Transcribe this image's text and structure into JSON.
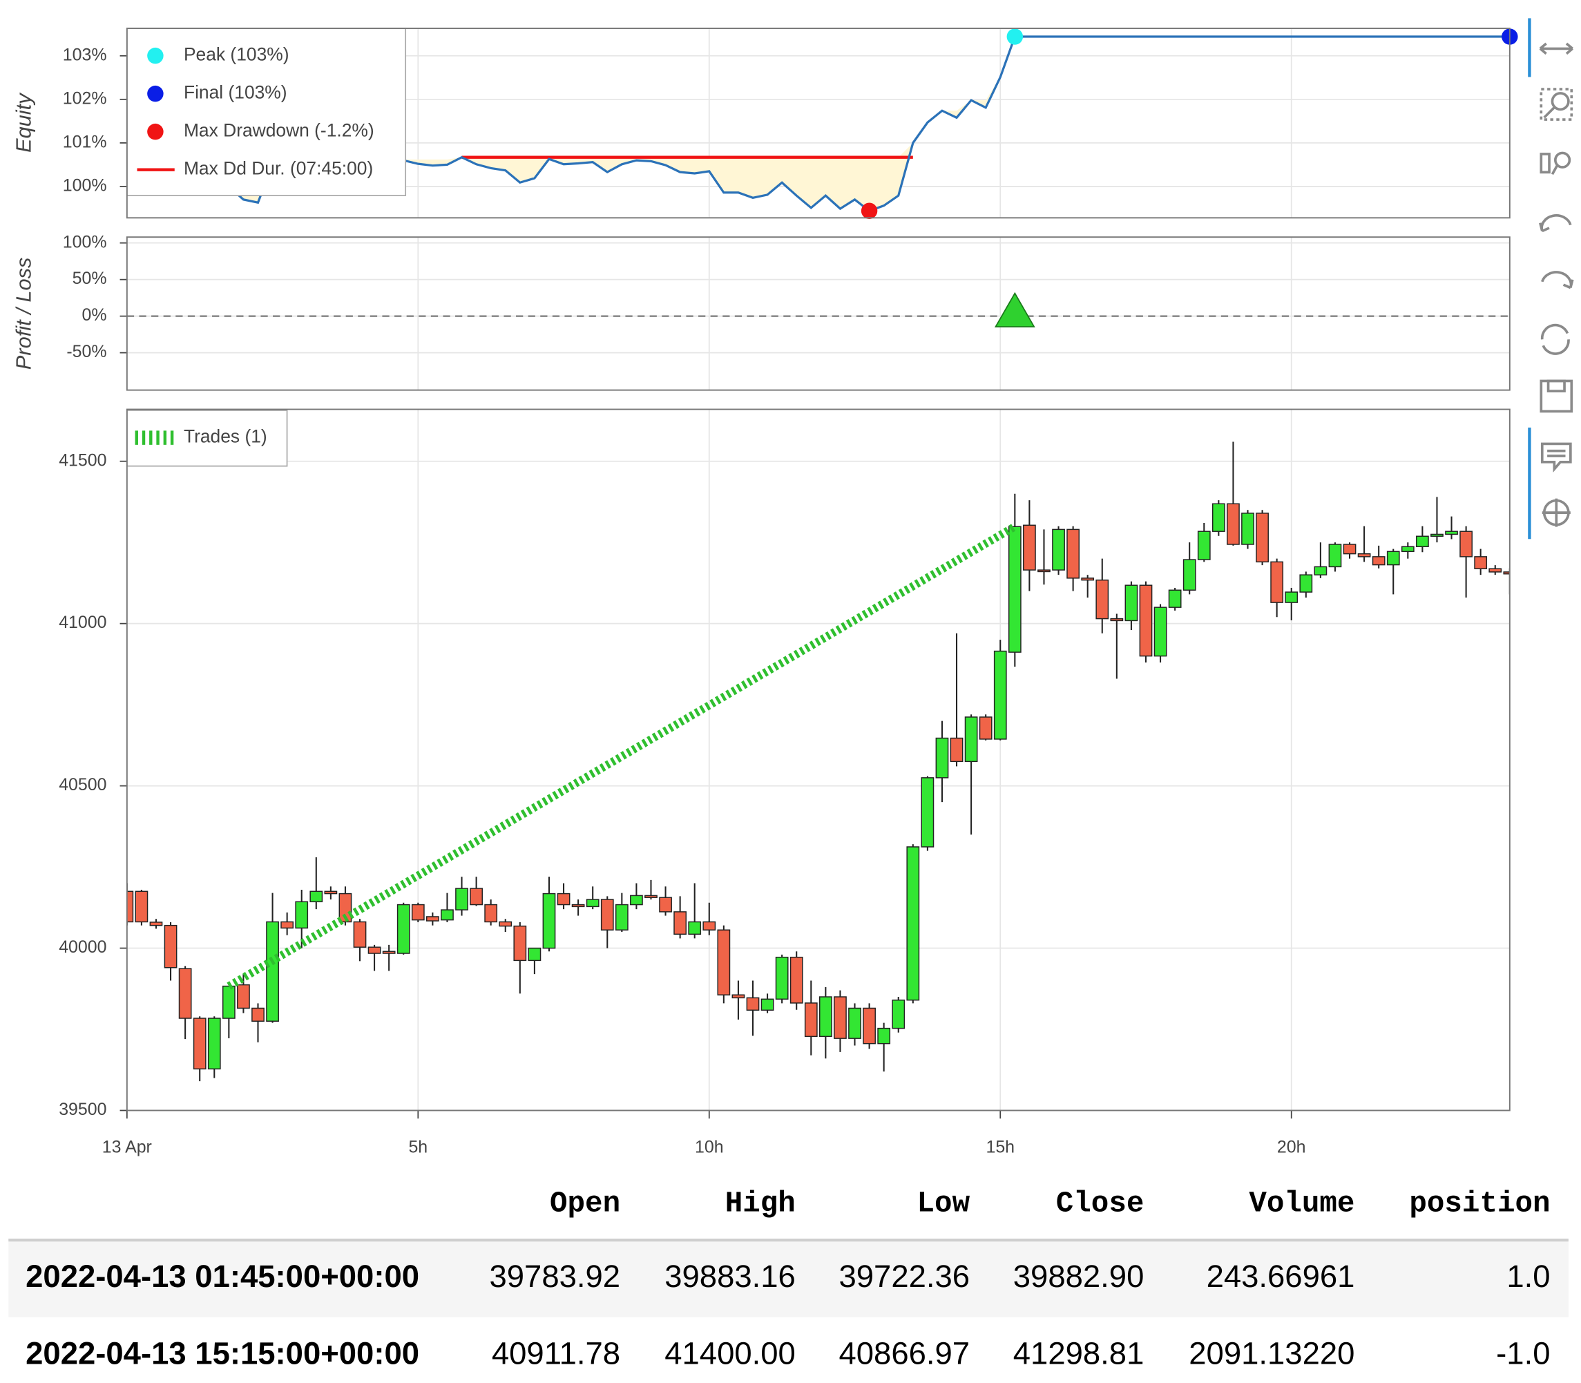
{
  "chart_data": [
    {
      "type": "line",
      "ylabel": "Equity",
      "color": "#2b72b8",
      "fill_color": "#fff6d5",
      "xlim": [
        0,
        23.75
      ],
      "ylim": [
        99.28,
        103.63
      ],
      "yticks": [
        {
          "value": 100,
          "label": "100%"
        },
        {
          "value": 101,
          "label": "101%"
        },
        {
          "value": 102,
          "label": "102%"
        },
        {
          "value": 103,
          "label": "103%"
        }
      ],
      "x": [
        0,
        0.25,
        0.5,
        0.75,
        1,
        1.25,
        1.5,
        1.75,
        2,
        2.25,
        2.5,
        2.75,
        3,
        3.25,
        3.5,
        3.75,
        4,
        4.25,
        4.5,
        4.75,
        5,
        5.25,
        5.5,
        5.75,
        6,
        6.25,
        6.5,
        6.75,
        7,
        7.25,
        7.5,
        7.75,
        8,
        8.25,
        8.5,
        8.75,
        9,
        9.25,
        9.5,
        9.75,
        10,
        10.25,
        10.5,
        10.75,
        11,
        11.25,
        11.5,
        11.75,
        12,
        12.25,
        12.5,
        12.75,
        13,
        13.25,
        13.5,
        13.75,
        14,
        14.25,
        14.5,
        14.75,
        15,
        15.25,
        23.75
      ],
      "values": [
        100,
        100,
        100,
        100,
        100,
        100,
        100,
        100,
        99.7,
        99.63,
        100.5,
        100.45,
        100.6,
        100.62,
        100.58,
        100.5,
        100.3,
        100.25,
        100.25,
        100.6,
        100.52,
        100.48,
        100.5,
        100.67,
        100.51,
        100.42,
        100.37,
        100.09,
        100.19,
        100.63,
        100.51,
        100.53,
        100.56,
        100.33,
        100.51,
        100.6,
        100.58,
        100.49,
        100.33,
        100.3,
        100.35,
        99.86,
        99.86,
        99.74,
        99.81,
        100.09,
        99.79,
        99.51,
        99.79,
        99.49,
        99.7,
        99.44,
        99.56,
        99.79,
        101.0,
        101.47,
        101.74,
        101.58,
        101.98,
        101.81,
        102.51,
        103.44,
        103.44
      ],
      "peak": {
        "label": "Peak (103%)",
        "x": 15.25,
        "value": 103.44,
        "color": "#22f0f0"
      },
      "final": {
        "label": "Final (103%)",
        "x": 23.75,
        "value": 103.44,
        "color": "#0a1ee6"
      },
      "max_drawdown": {
        "label": "Max Drawdown (-1.2%)",
        "x": 12.75,
        "value": 99.44,
        "color": "#f01414"
      },
      "max_dd_duration": {
        "label": "Max Dd Dur. (07:45:00)",
        "x": [
          5.75,
          13.5
        ],
        "value": 100.67,
        "color": "#f01414"
      }
    },
    {
      "type": "scatter",
      "ylabel": "Profit / Loss",
      "color": "#2fd12f",
      "xlim": [
        0,
        23.75
      ],
      "ylim": [
        -101,
        108
      ],
      "yticks": [
        {
          "value": 100,
          "label": "100%"
        },
        {
          "value": 50,
          "label": "50%"
        },
        {
          "value": 0,
          "label": "0%"
        },
        {
          "value": -50,
          "label": "-50%"
        }
      ],
      "x": [
        15.25
      ],
      "values": [
        3.55
      ]
    },
    {
      "type": "candlestick",
      "up_color": "#33e633",
      "down_color": "#f06448",
      "xlim": [
        0,
        23.75
      ],
      "ylim": [
        39500,
        41660
      ],
      "yticks": [
        39500,
        40000,
        40500,
        41000,
        41500
      ],
      "xticks": [
        {
          "value": 0,
          "label": "13 Apr"
        },
        {
          "value": 5,
          "label": "5h"
        },
        {
          "value": 10,
          "label": "10h"
        },
        {
          "value": 15,
          "label": "15h"
        },
        {
          "value": 20,
          "label": "20h"
        }
      ],
      "x": [
        0,
        0.25,
        0.5,
        0.75,
        1,
        1.25,
        1.5,
        1.75,
        2,
        2.25,
        2.5,
        2.75,
        3,
        3.25,
        3.5,
        3.75,
        4,
        4.25,
        4.5,
        4.75,
        5,
        5.25,
        5.5,
        5.75,
        6,
        6.25,
        6.5,
        6.75,
        7,
        7.25,
        7.5,
        7.75,
        8,
        8.25,
        8.5,
        8.75,
        9,
        9.25,
        9.5,
        9.75,
        10,
        10.25,
        10.5,
        10.75,
        11,
        11.25,
        11.5,
        11.75,
        12,
        12.25,
        12.5,
        12.75,
        13,
        13.25,
        13.5,
        13.75,
        14,
        14.25,
        14.5,
        14.75,
        15,
        15.25,
        15.5,
        15.75,
        16,
        16.25,
        16.5,
        16.75,
        17,
        17.25,
        17.5,
        17.75,
        18,
        18.25,
        18.5,
        18.75,
        19,
        19.25,
        19.5,
        19.75,
        20,
        20.25,
        20.5,
        20.75,
        21,
        21.25,
        21.5,
        21.75,
        22,
        22.25,
        22.5,
        22.75,
        23,
        23.25,
        23.5,
        23.75
      ],
      "open": [
        40175,
        40175,
        40080,
        40070,
        39937,
        39784,
        39628,
        39783.92,
        39887,
        39815,
        39775,
        40081,
        40062,
        40143,
        40175,
        40168,
        40081,
        40003,
        39990,
        39984,
        40134,
        40097,
        40087,
        40118,
        40184,
        40134,
        40081,
        40068,
        39962,
        40000,
        40168,
        40134,
        40128,
        40150,
        40056,
        40134,
        40162,
        40156,
        40112,
        40043,
        40081,
        40056,
        39856,
        39847,
        39809,
        39843,
        39972,
        39831,
        39728,
        39850,
        39722,
        39815,
        39706,
        39753,
        39840,
        40312,
        40525,
        40647,
        40575,
        40712,
        40644,
        40911.78,
        41303,
        41165,
        41165,
        41290,
        41140,
        41134,
        41015,
        41009,
        41118,
        40900,
        41050,
        41103,
        41197,
        41284,
        41369,
        41244,
        41340,
        41190,
        41065,
        41097,
        41150,
        41175,
        41244,
        41215,
        41206,
        41181,
        41222,
        41237,
        41269,
        41275,
        41284,
        41206,
        41169,
        41159
      ],
      "high": [
        40200,
        40180,
        40090,
        40080,
        39945,
        39790,
        39790,
        39883.16,
        39920,
        39830,
        40170,
        40110,
        40180,
        40280,
        40190,
        40190,
        40090,
        40010,
        40010,
        40140,
        40140,
        40110,
        40170,
        40220,
        40220,
        40150,
        40090,
        40080,
        40000,
        40220,
        40200,
        40150,
        40190,
        40160,
        40170,
        40200,
        40210,
        40190,
        40160,
        40200,
        40140,
        40070,
        39900,
        39900,
        39860,
        39980,
        39990,
        39900,
        39880,
        39870,
        39830,
        39830,
        39770,
        39850,
        40320,
        40530,
        40700,
        40970,
        40720,
        40720,
        40950,
        41400,
        41380,
        41290,
        41300,
        41300,
        41150,
        41200,
        41030,
        41130,
        41130,
        41060,
        41110,
        41250,
        41310,
        41380,
        41560,
        41350,
        41350,
        41200,
        41110,
        41160,
        41250,
        41250,
        41250,
        41300,
        41240,
        41230,
        41250,
        41300,
        41390,
        41330,
        41300,
        41230,
        41180,
        41170
      ],
      "low": [
        40070,
        40070,
        40060,
        39900,
        39720,
        39590,
        39600,
        39722.36,
        39800,
        39710,
        39770,
        40040,
        40000,
        40120,
        40150,
        40070,
        39960,
        39930,
        39930,
        39980,
        40080,
        40070,
        40080,
        40100,
        40130,
        40070,
        40050,
        39860,
        39920,
        39990,
        40120,
        40100,
        40120,
        40000,
        40050,
        40120,
        40150,
        40100,
        40030,
        40030,
        40040,
        39830,
        39780,
        39730,
        39800,
        39830,
        39810,
        39670,
        39660,
        39680,
        39700,
        39690,
        39620,
        39740,
        39830,
        40300,
        40450,
        40560,
        40350,
        40640,
        40640,
        40866.97,
        41100,
        41120,
        41150,
        41100,
        41080,
        40970,
        40830,
        40980,
        40880,
        40880,
        41040,
        41090,
        41190,
        41270,
        41240,
        41230,
        41180,
        41020,
        41010,
        41080,
        41140,
        41160,
        41200,
        41190,
        41170,
        41090,
        41200,
        41220,
        41250,
        41260,
        41080,
        41150,
        41150,
        41090
      ],
      "close": [
        40081,
        40081,
        40070,
        39940,
        39784,
        39628,
        39784,
        39882.9,
        39815,
        39775,
        40081,
        40062,
        40143,
        40175,
        40168,
        40081,
        40003,
        39984,
        39984,
        40134,
        40087,
        40084,
        40118,
        40184,
        40134,
        40081,
        40068,
        39962,
        40000,
        40168,
        40134,
        40128,
        40150,
        40056,
        40134,
        40162,
        40156,
        40112,
        40043,
        40081,
        40056,
        39856,
        39847,
        39809,
        39843,
        39972,
        39831,
        39728,
        39850,
        39722,
        39815,
        39706,
        39753,
        39840,
        40312,
        40525,
        40647,
        40575,
        40712,
        40644,
        40915,
        41298.81,
        41165,
        41160,
        41290,
        41140,
        41134,
        41015,
        41009,
        41118,
        40900,
        41050,
        41103,
        41197,
        41284,
        41369,
        41244,
        41340,
        41190,
        41065,
        41097,
        41150,
        41175,
        41244,
        41215,
        41206,
        41181,
        41222,
        41237,
        41269,
        41275,
        41284,
        41206,
        41169,
        41159,
        41153
      ],
      "trade": {
        "name": "Trades (1)",
        "color": "#2fbf2f",
        "x": [
          1.75,
          15.25
        ],
        "values": [
          39882.9,
          41298.81
        ]
      }
    }
  ],
  "table": {
    "columns": [
      "Open",
      "High",
      "Low",
      "Close",
      "Volume",
      "position"
    ],
    "rows": [
      [
        "2022-04-13 01:45:00+00:00",
        "39783.92",
        "39883.16",
        "39722.36",
        "39882.90",
        "243.66961",
        "1.0"
      ],
      [
        "2022-04-13 15:15:00+00:00",
        "40911.78",
        "41400.00",
        "40866.97",
        "41298.81",
        "2091.13220",
        "-1.0"
      ]
    ]
  }
}
